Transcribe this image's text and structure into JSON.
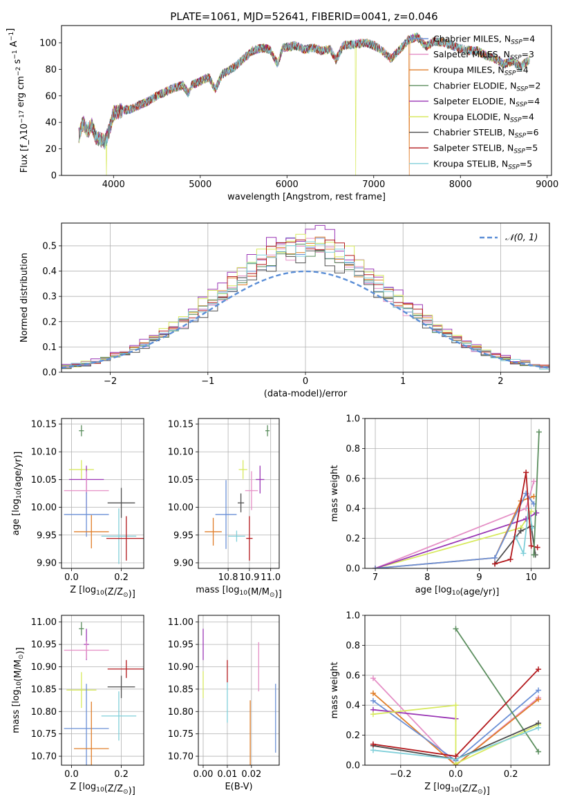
{
  "figure": {
    "title": "PLATE=1061, MJD=52641, FIBERID=0041, z=0.046"
  },
  "colors": {
    "Chabrier MILES": "#6a8fd6",
    "Salpeter MILES": "#e58fc6",
    "Kroupa MILES": "#e07d28",
    "Chabrier ELODIE": "#5b8e5e",
    "Salpeter ELODIE": "#9a36b5",
    "Kroupa ELODIE": "#d7e95e",
    "Chabrier STELIB": "#4d4d4d",
    "Salpeter STELIB": "#b3191d",
    "Kroupa STELIB": "#7fcfd9",
    "gaussian": "#5b8ed6",
    "grid": "#b0b0b0"
  },
  "chart_data": [
    {
      "id": "spectrum",
      "type": "line",
      "title": "PLATE=1061, MJD=52641, FIBERID=0041, z=0.046",
      "xlabel": "wavelength [Angstrom, rest frame]",
      "ylabel": "Flux [f_λ10^-17 erg cm^-2 s^-1 A^-1]",
      "xlim": [
        3400,
        9050
      ],
      "ylim": [
        0,
        113
      ],
      "xticks": [
        "4000",
        "5000",
        "6000",
        "7000",
        "8000",
        "9000"
      ],
      "yticks": [
        "0",
        "20",
        "40",
        "60",
        "80",
        "100"
      ],
      "grid": false,
      "legend_position": "top-right",
      "legend": [
        {
          "base": "Chabrier MILES, N",
          "sub": "SSP",
          "tail": "=4"
        },
        {
          "base": "Salpeter MILES, N",
          "sub": "SSP",
          "tail": "=3"
        },
        {
          "base": "Kroupa MILES, N",
          "sub": "SSP",
          "tail": "=4"
        },
        {
          "base": "Chabrier ELODIE, N",
          "sub": "SSP",
          "tail": "=2"
        },
        {
          "base": "Salpeter ELODIE, N",
          "sub": "SSP",
          "tail": "=4"
        },
        {
          "base": "Kroupa ELODIE, N",
          "sub": "SSP",
          "tail": "=4"
        },
        {
          "base": "Chabrier STELIB, N",
          "sub": "SSP",
          "tail": "=6"
        },
        {
          "base": "Salpeter STELIB, N",
          "sub": "SSP",
          "tail": "=5"
        },
        {
          "base": "Kroupa STELIB, N",
          "sub": "SSP",
          "tail": "=5"
        }
      ],
      "envelope": [
        [
          3600,
          30
        ],
        [
          3650,
          40
        ],
        [
          3700,
          33
        ],
        [
          3750,
          38
        ],
        [
          3800,
          28
        ],
        [
          3850,
          27
        ],
        [
          3900,
          25
        ],
        [
          3950,
          34
        ],
        [
          4000,
          47
        ],
        [
          4100,
          49
        ],
        [
          4200,
          50
        ],
        [
          4300,
          53
        ],
        [
          4400,
          56
        ],
        [
          4500,
          60
        ],
        [
          4600,
          63
        ],
        [
          4700,
          66
        ],
        [
          4800,
          68
        ],
        [
          4861,
          62
        ],
        [
          4900,
          68
        ],
        [
          5000,
          71
        ],
        [
          5100,
          74
        ],
        [
          5175,
          65
        ],
        [
          5250,
          76
        ],
        [
          5400,
          82
        ],
        [
          5500,
          88
        ],
        [
          5600,
          94
        ],
        [
          5700,
          96
        ],
        [
          5800,
          95
        ],
        [
          5893,
          84
        ],
        [
          5950,
          96
        ],
        [
          6100,
          98
        ],
        [
          6200,
          95
        ],
        [
          6300,
          96
        ],
        [
          6400,
          94
        ],
        [
          6500,
          95
        ],
        [
          6563,
          87
        ],
        [
          6650,
          98
        ],
        [
          6800,
          99
        ],
        [
          6900,
          100
        ],
        [
          7000,
          98
        ],
        [
          7100,
          94
        ],
        [
          7200,
          88
        ],
        [
          7300,
          95
        ],
        [
          7400,
          102
        ],
        [
          7500,
          105
        ],
        [
          7600,
          97
        ],
        [
          7700,
          101
        ],
        [
          7800,
          100
        ],
        [
          7900,
          98
        ],
        [
          8000,
          96
        ],
        [
          8100,
          94
        ],
        [
          8200,
          94
        ],
        [
          8300,
          90
        ],
        [
          8400,
          88
        ],
        [
          8500,
          84
        ],
        [
          8600,
          86
        ],
        [
          8700,
          82
        ],
        [
          8800,
          88
        ]
      ],
      "spikes": [
        {
          "wavelength": 3920,
          "series": "Kroupa ELODIE",
          "floor": 0
        },
        {
          "wavelength": 6790,
          "series": "Kroupa ELODIE",
          "floor": 0
        },
        {
          "wavelength": 7410,
          "series": "Kroupa MILES",
          "floor": 0
        }
      ]
    },
    {
      "id": "residuals",
      "type": "histogram",
      "xlabel": "(data-model)/error",
      "ylabel": "Normed distribution",
      "xlim": [
        -2.5,
        2.5
      ],
      "ylim": [
        0,
        0.59
      ],
      "xticks": [
        "−2",
        "−1",
        "0",
        "1",
        "2"
      ],
      "yticks": [
        "0.0",
        "0.1",
        "0.2",
        "0.3",
        "0.4",
        "0.5"
      ],
      "grid": true,
      "legend_position": "top-right",
      "legend_label": "𝒩(0, 1)",
      "bin_width": 0.1,
      "reference_curve": {
        "type": "normal",
        "mean": 0,
        "sd": 1
      },
      "series_peaks": {
        "Chabrier MILES": 0.5,
        "Salpeter MILES": 0.49,
        "Kroupa MILES": 0.51,
        "Chabrier ELODIE": 0.5,
        "Salpeter ELODIE": 0.56,
        "Kroupa ELODIE": 0.54,
        "Chabrier STELIB": 0.47,
        "Salpeter STELIB": 0.52,
        "Kroupa STELIB": 0.5
      }
    },
    {
      "id": "age-vs-Z",
      "type": "errorbar",
      "xlabel": "Z [log10(Z/Z⊙)]",
      "ylabel": "age  [log10(age/yr)]",
      "xlim": [
        -0.04,
        0.29
      ],
      "ylim": [
        9.89,
        10.16
      ],
      "xticks": [
        "0.0",
        "0.2"
      ],
      "yticks": [
        "9.90",
        "9.95",
        "10.00",
        "10.05",
        "10.10",
        "10.15"
      ],
      "grid": true,
      "points": [
        {
          "series": "Chabrier ELODIE",
          "x": 0.04,
          "xerr": 0.01,
          "y": 10.138,
          "yerr": 0.01
        },
        {
          "series": "Kroupa ELODIE",
          "x": 0.04,
          "xerr": 0.05,
          "y": 10.068,
          "yerr": 0.017
        },
        {
          "series": "Salpeter ELODIE",
          "x": 0.06,
          "xerr": 0.07,
          "y": 10.05,
          "yerr": 0.025
        },
        {
          "series": "Salpeter MILES",
          "x": 0.06,
          "xerr": 0.09,
          "y": 10.03,
          "yerr": 0.035
        },
        {
          "series": "Chabrier STELIB",
          "x": 0.2,
          "xerr": 0.055,
          "y": 10.008,
          "yerr": 0.027
        },
        {
          "series": "Chabrier MILES",
          "x": 0.06,
          "xerr": 0.09,
          "y": 9.987,
          "yerr": 0.04
        },
        {
          "series": "Kroupa MILES",
          "x": 0.08,
          "xerr": 0.07,
          "y": 9.956,
          "yerr": 0.03
        },
        {
          "series": "Kroupa STELIB",
          "x": 0.19,
          "xerr": 0.07,
          "y": 9.948,
          "yerr": 0.05
        },
        {
          "series": "Salpeter STELIB",
          "x": 0.22,
          "xerr": 0.08,
          "y": 9.944,
          "yerr": 0.04
        }
      ]
    },
    {
      "id": "age-vs-mass",
      "type": "errorbar",
      "xlabel": "mass [log10(M/M⊙)]",
      "ylabel": "",
      "xlim": [
        10.66,
        11.04
      ],
      "ylim": [
        9.89,
        10.16
      ],
      "xticks": [
        "10.8",
        "10.9",
        "11.0"
      ],
      "yticks": [
        "9.90",
        "9.95",
        "10.00",
        "10.05",
        "10.10",
        "10.15"
      ],
      "grid": true,
      "points": [
        {
          "series": "Chabrier ELODIE",
          "x": 10.985,
          "xerr": 0.01,
          "y": 10.138,
          "yerr": 0.01
        },
        {
          "series": "Kroupa ELODIE",
          "x": 10.87,
          "xerr": 0.02,
          "y": 10.068,
          "yerr": 0.017
        },
        {
          "series": "Salpeter ELODIE",
          "x": 10.95,
          "xerr": 0.02,
          "y": 10.05,
          "yerr": 0.025
        },
        {
          "series": "Salpeter MILES",
          "x": 10.91,
          "xerr": 0.03,
          "y": 10.03,
          "yerr": 0.035
        },
        {
          "series": "Chabrier STELIB",
          "x": 10.86,
          "xerr": 0.015,
          "y": 10.008,
          "yerr": 0.017
        },
        {
          "series": "Chabrier MILES",
          "x": 10.79,
          "xerr": 0.05,
          "y": 9.987,
          "yerr": 0.062
        },
        {
          "series": "Kroupa MILES",
          "x": 10.73,
          "xerr": 0.04,
          "y": 9.956,
          "yerr": 0.025
        },
        {
          "series": "Kroupa STELIB",
          "x": 10.84,
          "xerr": 0.04,
          "y": 9.948,
          "yerr": 0.01
        },
        {
          "series": "Salpeter STELIB",
          "x": 10.9,
          "xerr": 0.015,
          "y": 9.944,
          "yerr": 0.04
        }
      ]
    },
    {
      "id": "weight-vs-age",
      "type": "line",
      "xlabel": "age  [log10(age/yr)]",
      "ylabel": "mass weight",
      "xlim": [
        6.8,
        10.35
      ],
      "ylim": [
        0,
        1
      ],
      "xticks": [
        "7",
        "8",
        "9",
        "10"
      ],
      "yticks": [
        "0.0",
        "0.2",
        "0.4",
        "0.6",
        "0.8",
        "1.0"
      ],
      "grid": true,
      "series": [
        {
          "name": "Salpeter MILES",
          "x": [
            7.0,
            9.9,
            10.05
          ],
          "y": [
            0.0,
            0.4,
            0.58
          ]
        },
        {
          "name": "Kroupa ELODIE",
          "x": [
            7.0,
            9.8,
            10.0
          ],
          "y": [
            0.0,
            0.27,
            0.38
          ]
        },
        {
          "name": "Salpeter ELODIE",
          "x": [
            7.0,
            9.9,
            10.1
          ],
          "y": [
            0.0,
            0.33,
            0.37
          ]
        },
        {
          "name": "Kroupa MILES",
          "x": [
            7.0,
            9.3,
            9.8,
            10.05
          ],
          "y": [
            0.0,
            0.07,
            0.45,
            0.48
          ]
        },
        {
          "name": "Chabrier MILES",
          "x": [
            7.0,
            9.3,
            9.9,
            10.05
          ],
          "y": [
            0.0,
            0.07,
            0.5,
            0.43
          ]
        },
        {
          "name": "Chabrier STELIB",
          "x": [
            9.3,
            9.8,
            10.0,
            10.08
          ],
          "y": [
            0.03,
            0.25,
            0.28,
            0.09
          ]
        },
        {
          "name": "Kroupa STELIB",
          "x": [
            9.7,
            9.85,
            9.95,
            10.02
          ],
          "y": [
            0.21,
            0.1,
            0.4,
            0.27
          ]
        },
        {
          "name": "Salpeter STELIB",
          "x": [
            9.3,
            9.6,
            9.9,
            10.0,
            10.12
          ],
          "y": [
            0.03,
            0.06,
            0.64,
            0.15,
            0.14
          ]
        },
        {
          "name": "Chabrier ELODIE",
          "x": [
            10.05,
            10.15
          ],
          "y": [
            0.09,
            0.91
          ]
        }
      ]
    },
    {
      "id": "mass-vs-Z",
      "type": "errorbar",
      "xlabel": "Z [log10(Z/Z⊙)]",
      "ylabel": "mass [log10(M/M⊙)]",
      "xlim": [
        -0.04,
        0.29
      ],
      "ylim": [
        10.68,
        11.015
      ],
      "xticks": [
        "0.0",
        "0.2"
      ],
      "yticks": [
        "10.70",
        "10.75",
        "10.80",
        "10.85",
        "10.90",
        "10.95",
        "11.00"
      ],
      "grid": true,
      "points": [
        {
          "series": "Chabrier ELODIE",
          "x": 0.04,
          "xerr": 0.01,
          "y": 10.985,
          "yerr": 0.015
        },
        {
          "series": "Salpeter ELODIE",
          "x": 0.06,
          "xerr": 0.01,
          "y": 10.95,
          "yerr": 0.035
        },
        {
          "series": "Salpeter MILES",
          "x": 0.06,
          "xerr": 0.09,
          "y": 10.937,
          "yerr": 0.02
        },
        {
          "series": "Salpeter STELIB",
          "x": 0.22,
          "xerr": 0.075,
          "y": 10.895,
          "yerr": 0.02
        },
        {
          "series": "Chabrier STELIB",
          "x": 0.2,
          "xerr": 0.055,
          "y": 10.855,
          "yerr": 0.025
        },
        {
          "series": "Kroupa ELODIE",
          "x": 0.04,
          "xerr": 0.06,
          "y": 10.848,
          "yerr": 0.04
        },
        {
          "series": "Kroupa STELIB",
          "x": 0.19,
          "xerr": 0.07,
          "y": 10.79,
          "yerr": 0.055
        },
        {
          "series": "Chabrier MILES",
          "x": 0.06,
          "xerr": 0.09,
          "y": 10.762,
          "yerr": 0.1
        },
        {
          "series": "Kroupa MILES",
          "x": 0.08,
          "xerr": 0.07,
          "y": 10.717,
          "yerr": 0.105
        }
      ]
    },
    {
      "id": "mass-vs-EBV",
      "type": "errorbar",
      "xlabel": "E(B-V)",
      "ylabel": "",
      "xlim": [
        -0.002,
        0.0315
      ],
      "ylim": [
        10.68,
        11.015
      ],
      "xticks": [
        "0.00",
        "0.01",
        "0.02"
      ],
      "yticks": [
        "10.70",
        "10.75",
        "10.80",
        "10.85",
        "10.90",
        "10.95",
        "11.00"
      ],
      "grid": true,
      "points": [
        {
          "series": "Salpeter ELODIE",
          "x": 0.0,
          "y": 10.95,
          "yerr": 0.035
        },
        {
          "series": "Kroupa ELODIE",
          "x": 0.0,
          "y": 10.86,
          "yerr": 0.03
        },
        {
          "series": "Salpeter STELIB",
          "x": 0.01,
          "y": 10.89,
          "yerr": 0.025
        },
        {
          "series": "Kroupa STELIB",
          "x": 0.01,
          "y": 10.82,
          "yerr": 0.045
        },
        {
          "series": "Kroupa MILES",
          "x": 0.0195,
          "y": 10.72,
          "yerr": 0.105
        },
        {
          "series": "Salpeter MILES",
          "x": 0.023,
          "y": 10.9,
          "yerr": 0.055
        },
        {
          "series": "Chabrier MILES",
          "x": 0.03,
          "y": 10.785,
          "yerr": 0.077
        }
      ]
    },
    {
      "id": "weight-vs-Z",
      "type": "line",
      "xlabel": "Z [log10(Z/Z⊙)]",
      "ylabel": "mass weight",
      "xlim": [
        -0.33,
        0.34
      ],
      "ylim": [
        0,
        1
      ],
      "xticks": [
        "−0.2",
        "0.0",
        "0.2"
      ],
      "yticks": [
        "0.0",
        "0.2",
        "0.4",
        "0.6",
        "0.8",
        "1.0"
      ],
      "grid": true,
      "series": [
        {
          "name": "Salpeter MILES",
          "x": [
            -0.3,
            0.0,
            0.3
          ],
          "y": [
            0.58,
            0.0,
            0.45
          ]
        },
        {
          "name": "Kroupa MILES",
          "x": [
            -0.3,
            0.0,
            0.3
          ],
          "y": [
            0.48,
            0.0,
            0.44
          ]
        },
        {
          "name": "Chabrier MILES",
          "x": [
            -0.3,
            0.0,
            0.3
          ],
          "y": [
            0.43,
            0.03,
            0.5
          ]
        },
        {
          "name": "Salpeter ELODIE",
          "x": [
            -0.3,
            0.0
          ],
          "y": [
            0.37,
            0.31
          ]
        },
        {
          "name": "Kroupa ELODIE",
          "x": [
            -0.3,
            0.0,
            0.0,
            0.3
          ],
          "y": [
            0.34,
            0.4,
            0.01,
            0.27
          ]
        },
        {
          "name": "Chabrier ELODIE",
          "x": [
            0.0,
            0.3
          ],
          "y": [
            0.91,
            0.09
          ]
        },
        {
          "name": "Chabrier STELIB",
          "x": [
            -0.3,
            0.0,
            0.3
          ],
          "y": [
            0.13,
            0.04,
            0.28
          ]
        },
        {
          "name": "Kroupa STELIB",
          "x": [
            -0.3,
            0.0,
            0.3
          ],
          "y": [
            0.1,
            0.04,
            0.25
          ]
        },
        {
          "name": "Salpeter STELIB",
          "x": [
            -0.3,
            0.0,
            0.3
          ],
          "y": [
            0.14,
            0.06,
            0.64
          ]
        }
      ]
    }
  ]
}
